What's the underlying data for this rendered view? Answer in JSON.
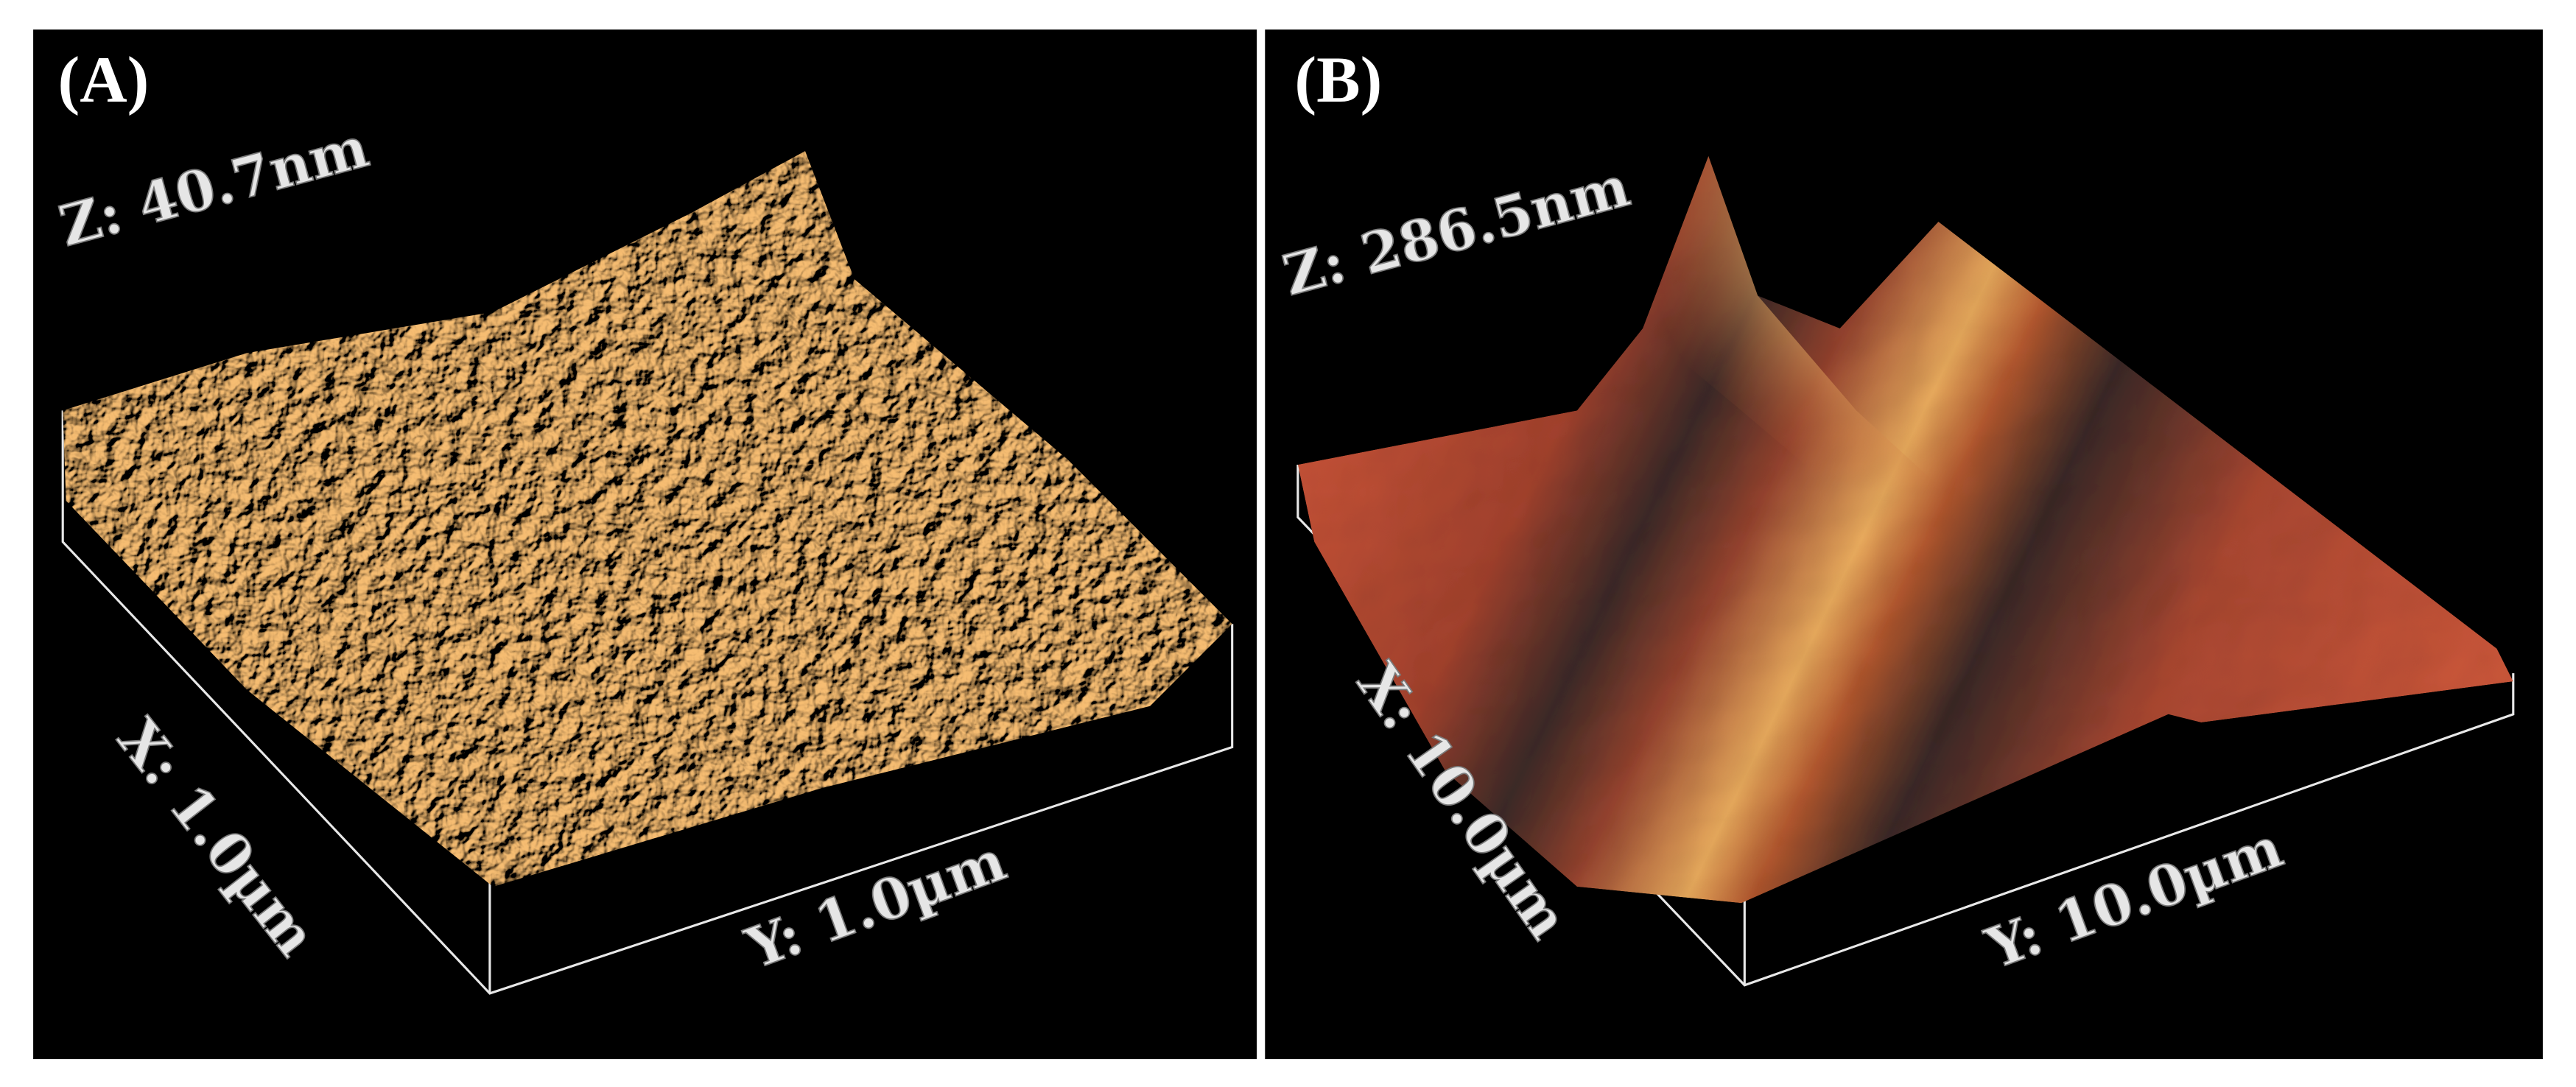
{
  "panels": [
    {
      "label": "(A)",
      "z_range": "Z: 40.7nm",
      "x_range": "X: 1.0µm",
      "y_range": "Y: 1.0µm"
    },
    {
      "label": "(B)",
      "z_range": "Z: 286.5nm",
      "x_range": "X: 10.0µm",
      "y_range": "Y: 10.0µm"
    }
  ]
}
